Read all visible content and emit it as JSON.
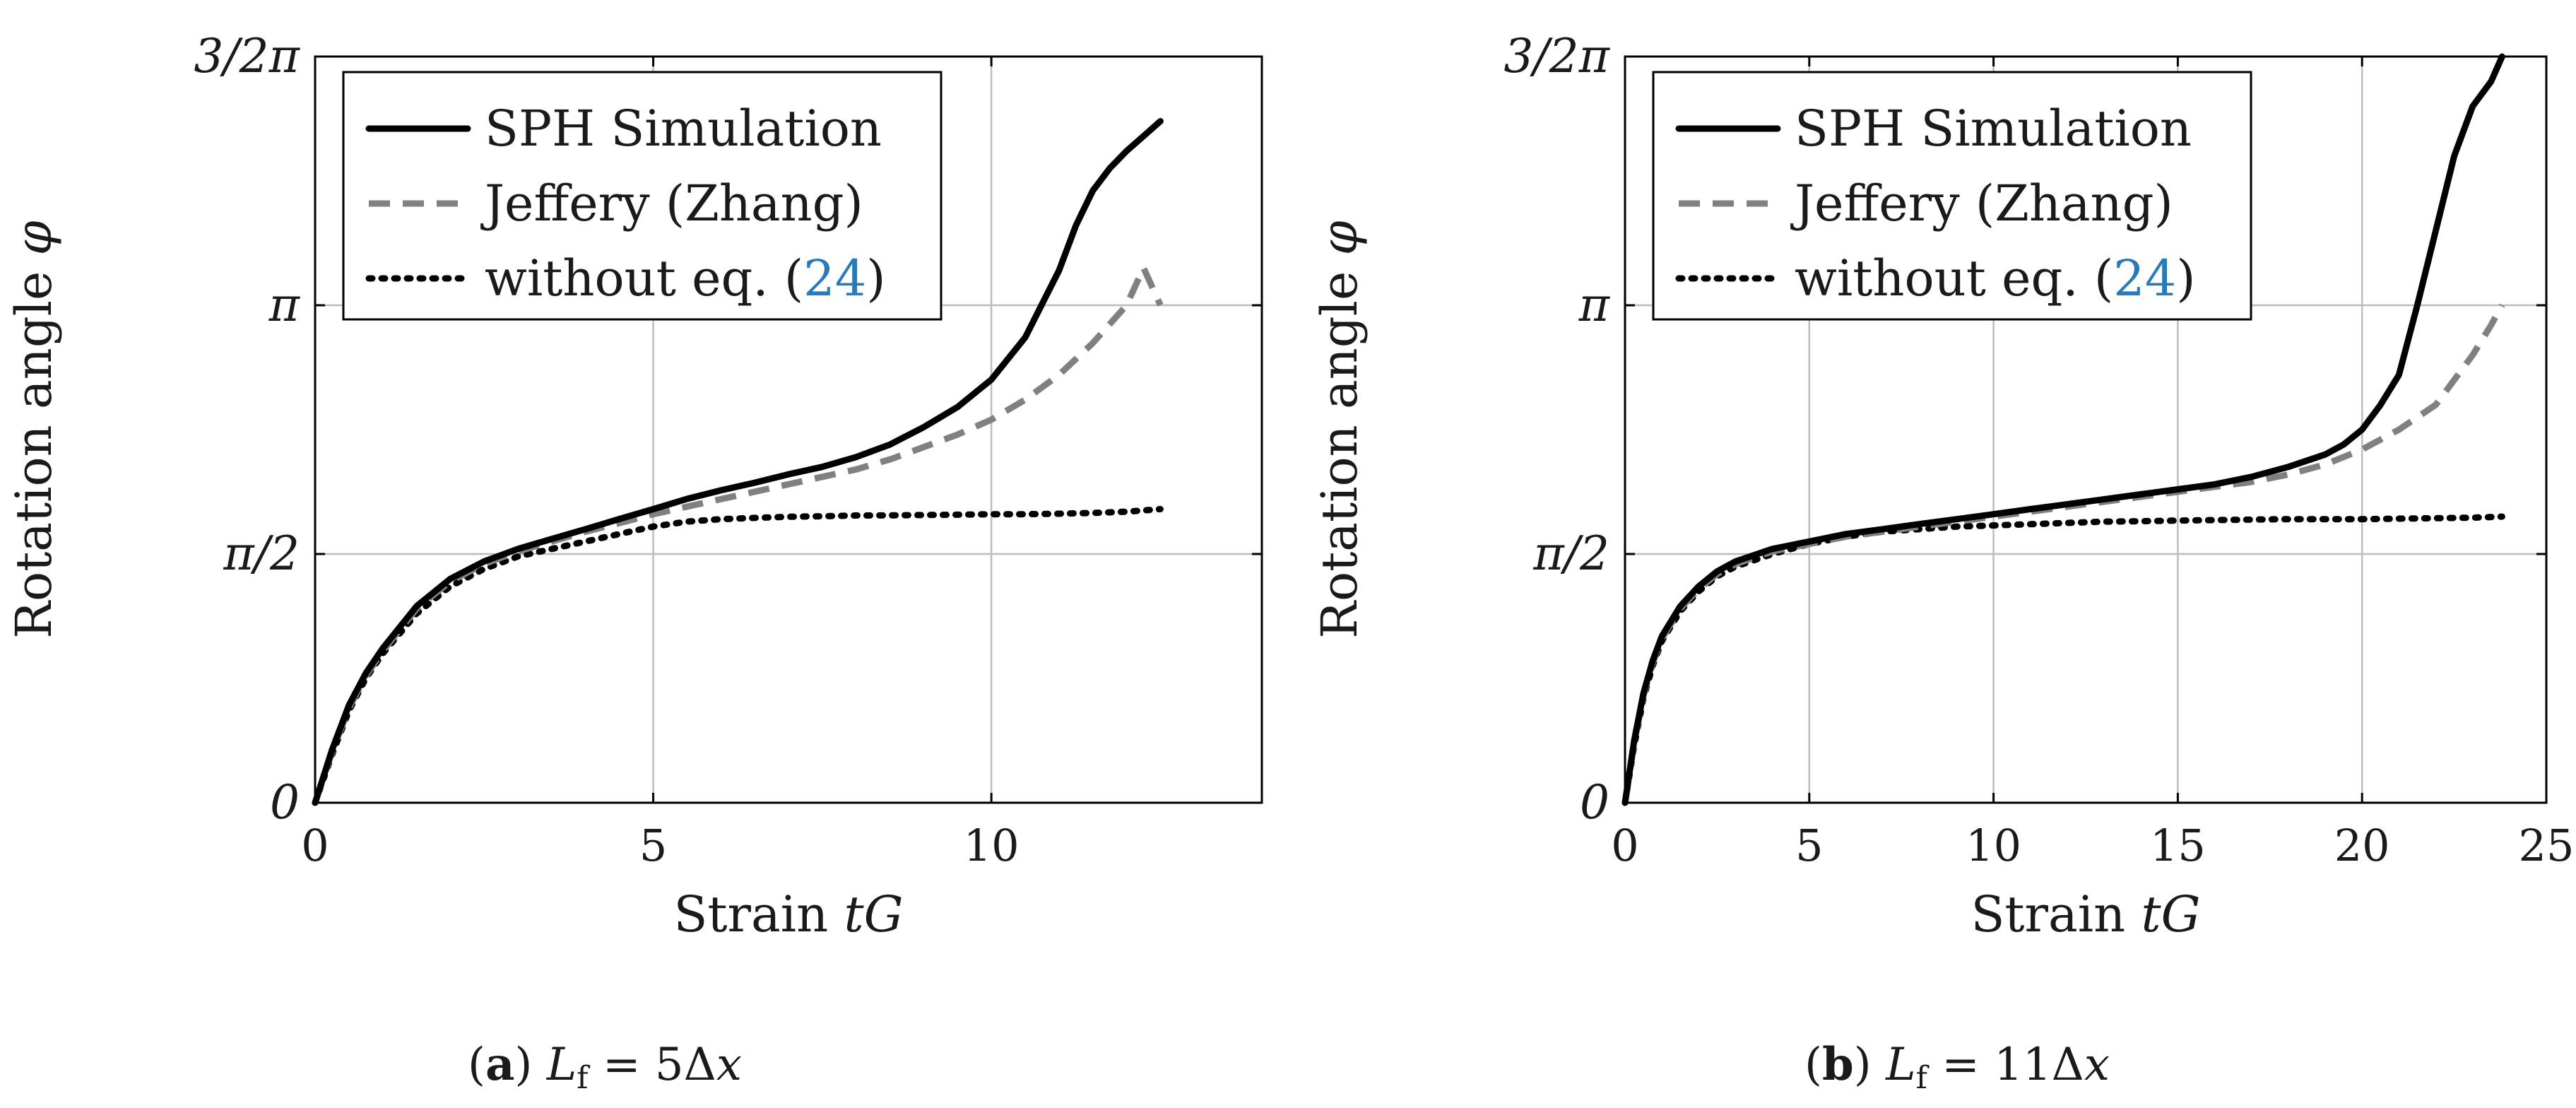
{
  "chart_data": [
    {
      "type": "line",
      "panel_label": "a",
      "caption_formula": "L_f = 5Δx",
      "xlabel": "Strain tG",
      "ylabel": "Rotation angle φ",
      "xlim": [
        0,
        14
      ],
      "ylim": [
        0,
        4.71239
      ],
      "x_ticks": [
        0,
        5,
        10
      ],
      "x_tick_labels": [
        "0",
        "5",
        "10"
      ],
      "y_ticks": [
        0,
        1.5708,
        3.14159,
        4.71239
      ],
      "y_tick_labels": [
        "0",
        "π/2",
        "π",
        "3/2π"
      ],
      "grid": true,
      "legend_position": "top-left",
      "legend_ref_number": "24",
      "series": [
        {
          "name": "SPH Simulation",
          "style": "solid",
          "color": "#000000",
          "x": [
            0,
            0.25,
            0.5,
            0.75,
            1,
            1.5,
            2,
            2.5,
            3,
            3.5,
            4,
            4.5,
            5,
            5.5,
            6,
            6.5,
            7,
            7.5,
            8,
            8.5,
            9,
            9.5,
            10,
            10.5,
            11,
            11.25,
            11.5,
            11.75,
            12,
            12.25,
            12.5
          ],
          "y": [
            0,
            0.333,
            0.616,
            0.818,
            0.975,
            1.241,
            1.414,
            1.524,
            1.603,
            1.666,
            1.728,
            1.792,
            1.854,
            1.919,
            1.973,
            2.021,
            2.074,
            2.121,
            2.183,
            2.262,
            2.372,
            2.499,
            2.672,
            2.938,
            3.361,
            3.645,
            3.865,
            4.006,
            4.116,
            4.21,
            4.304
          ]
        },
        {
          "name": "Jeffery (Zhang)",
          "style": "dashed",
          "color": "#808080",
          "x": [
            0,
            0.25,
            0.5,
            0.75,
            1,
            1.5,
            2,
            2.5,
            3,
            3.5,
            4,
            4.5,
            5,
            5.5,
            6,
            6.5,
            7,
            7.5,
            8,
            8.5,
            9,
            9.5,
            10,
            10.5,
            11,
            11.5,
            12,
            12.25,
            12.5
          ],
          "y": [
            0,
            0.318,
            0.597,
            0.802,
            0.958,
            1.225,
            1.398,
            1.508,
            1.587,
            1.65,
            1.712,
            1.766,
            1.822,
            1.87,
            1.917,
            1.964,
            2.011,
            2.058,
            2.105,
            2.168,
            2.246,
            2.325,
            2.419,
            2.545,
            2.702,
            2.903,
            3.142,
            3.378,
            3.142
          ]
        },
        {
          "name": "without eq. (24)",
          "style": "dotted",
          "color": "#000000",
          "x": [
            0,
            0.25,
            0.5,
            0.75,
            1,
            1.5,
            2,
            2.5,
            3,
            3.5,
            4,
            4.5,
            5,
            5.5,
            6,
            6.5,
            7,
            7.5,
            8,
            8.5,
            9,
            9.5,
            10,
            10.5,
            11,
            11.5,
            12,
            12.5
          ],
          "y": [
            0,
            0.302,
            0.581,
            0.786,
            0.942,
            1.194,
            1.367,
            1.477,
            1.555,
            1.603,
            1.65,
            1.697,
            1.744,
            1.775,
            1.791,
            1.799,
            1.806,
            1.809,
            1.814,
            1.815,
            1.817,
            1.819,
            1.822,
            1.822,
            1.825,
            1.83,
            1.838,
            1.854
          ]
        }
      ]
    },
    {
      "type": "line",
      "panel_label": "b",
      "caption_formula": "L_f = 11Δx",
      "xlabel": "Strain tG",
      "ylabel": "Rotation angle φ",
      "xlim": [
        0,
        25
      ],
      "ylim": [
        0,
        4.71239
      ],
      "x_ticks": [
        0,
        5,
        10,
        15,
        20,
        25
      ],
      "x_tick_labels": [
        "0",
        "5",
        "10",
        "15",
        "20",
        "25"
      ],
      "y_ticks": [
        0,
        1.5708,
        3.14159,
        4.71239
      ],
      "y_tick_labels": [
        "0",
        "π/2",
        "π",
        "3/2π"
      ],
      "grid": true,
      "legend_position": "top-left",
      "legend_ref_number": "24",
      "series": [
        {
          "name": "SPH Simulation",
          "style": "solid",
          "color": "#000000",
          "x": [
            0,
            0.25,
            0.5,
            0.75,
            1,
            1.5,
            2,
            2.5,
            3,
            4,
            5,
            6,
            7,
            8,
            9,
            10,
            11,
            12,
            13,
            14,
            15,
            16,
            17,
            18,
            19,
            19.5,
            20,
            20.5,
            21,
            21.5,
            22,
            22.5,
            23,
            23.5,
            23.8
          ],
          "y": [
            0,
            0.393,
            0.691,
            0.896,
            1.052,
            1.241,
            1.367,
            1.461,
            1.524,
            1.603,
            1.65,
            1.697,
            1.728,
            1.76,
            1.791,
            1.822,
            1.854,
            1.885,
            1.916,
            1.948,
            1.979,
            2.011,
            2.058,
            2.121,
            2.199,
            2.262,
            2.356,
            2.513,
            2.702,
            3.142,
            3.613,
            4.084,
            4.398,
            4.555,
            4.712
          ]
        },
        {
          "name": "Jeffery (Zhang)",
          "style": "dashed",
          "color": "#808080",
          "x": [
            0,
            0.25,
            0.5,
            0.75,
            1,
            1.5,
            2,
            2.5,
            3,
            4,
            5,
            6,
            7,
            8,
            9,
            10,
            11,
            12,
            13,
            14,
            15,
            16,
            17,
            18,
            19,
            20,
            21,
            22,
            22.5,
            23,
            23.5,
            23.8
          ],
          "y": [
            0,
            0.377,
            0.675,
            0.88,
            1.037,
            1.225,
            1.351,
            1.445,
            1.508,
            1.587,
            1.634,
            1.681,
            1.712,
            1.744,
            1.775,
            1.807,
            1.838,
            1.87,
            1.901,
            1.932,
            1.964,
            1.995,
            2.026,
            2.073,
            2.136,
            2.231,
            2.356,
            2.513,
            2.67,
            2.827,
            3.016,
            3.142
          ]
        },
        {
          "name": "without eq. (24)",
          "style": "dotted",
          "color": "#000000",
          "x": [
            0,
            0.25,
            0.5,
            0.75,
            1,
            1.5,
            2,
            2.5,
            3,
            4,
            5,
            6,
            7,
            8,
            9,
            10,
            11,
            12,
            13,
            14,
            15,
            16,
            17,
            18,
            19,
            20,
            21,
            22,
            23,
            23.8
          ],
          "y": [
            0,
            0.361,
            0.66,
            0.864,
            1.021,
            1.21,
            1.335,
            1.43,
            1.492,
            1.571,
            1.634,
            1.681,
            1.712,
            1.728,
            1.744,
            1.751,
            1.759,
            1.767,
            1.775,
            1.778,
            1.782,
            1.785,
            1.788,
            1.791,
            1.791,
            1.791,
            1.794,
            1.797,
            1.8,
            1.807
          ]
        }
      ]
    }
  ]
}
